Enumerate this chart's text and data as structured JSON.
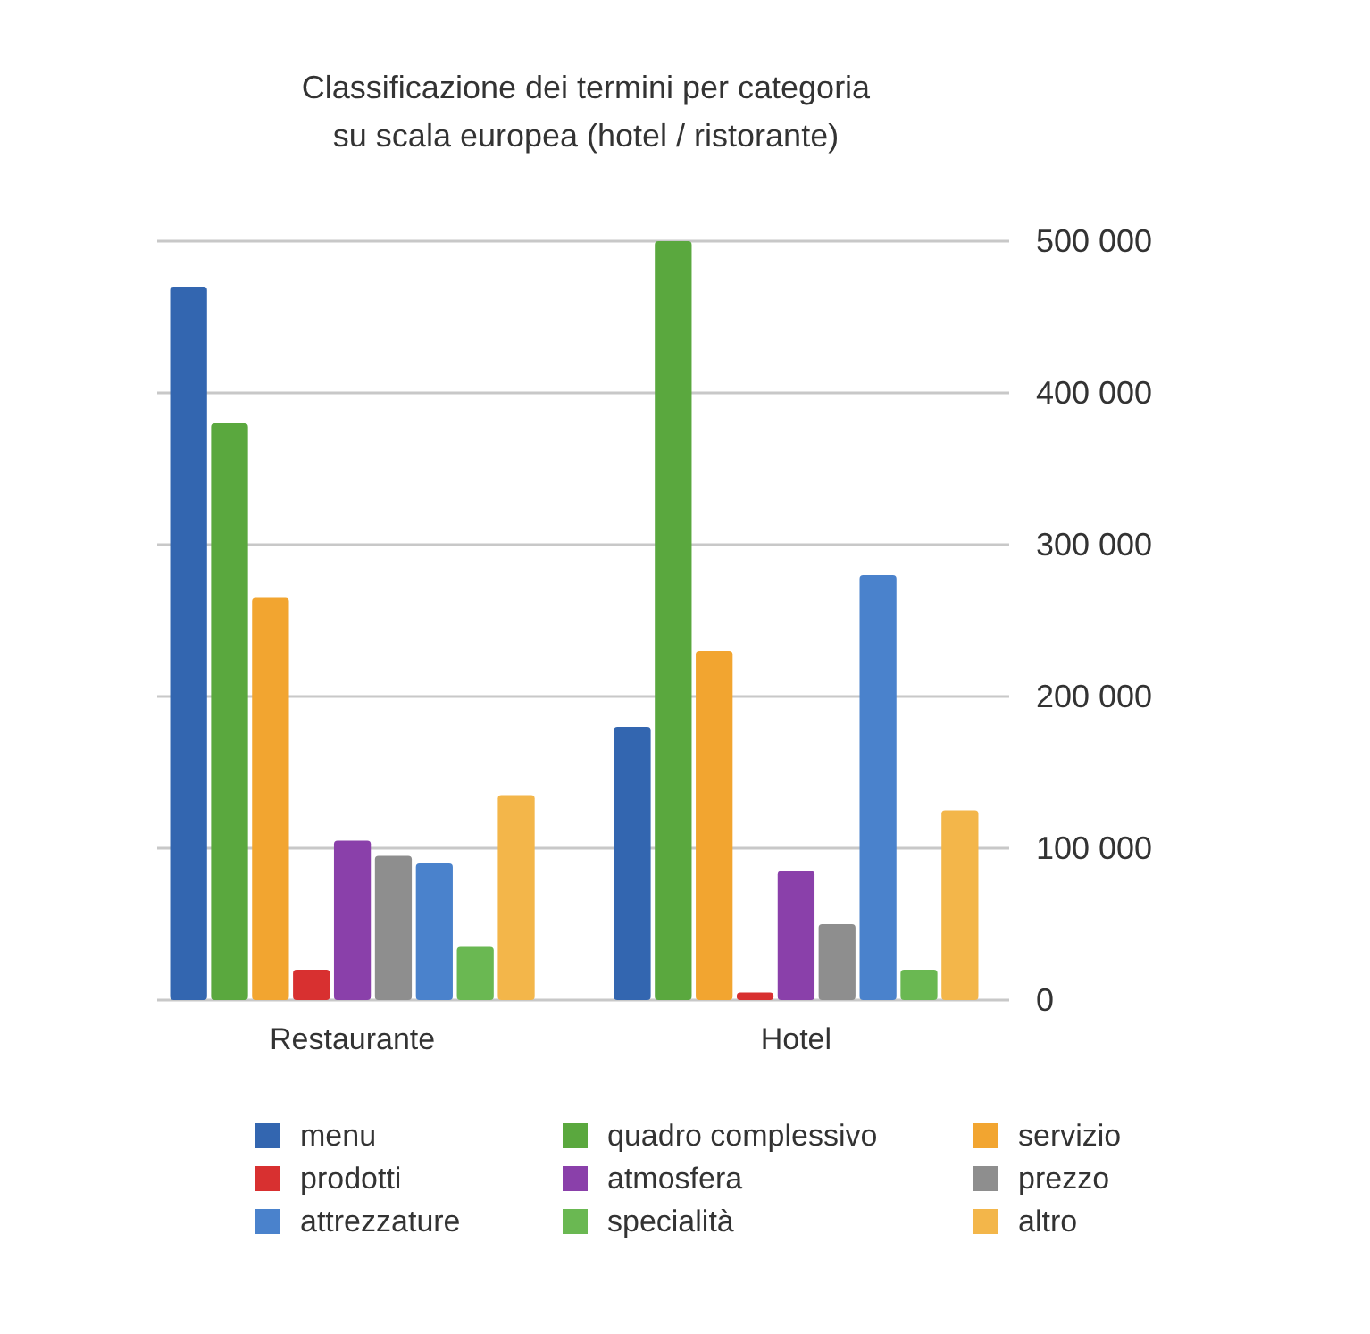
{
  "chart_data": {
    "type": "bar",
    "title": "Classificazione dei termini per categoria\nsu scala europea (hotel / ristorante)",
    "categories": [
      "Restaurante",
      "Hotel"
    ],
    "series": [
      {
        "name": "menu",
        "color": "#3366b0",
        "values": [
          470000,
          180000
        ]
      },
      {
        "name": "quadro complessivo",
        "color": "#5aa83e",
        "values": [
          380000,
          500000
        ]
      },
      {
        "name": "servizio",
        "color": "#f2a530",
        "values": [
          265000,
          230000
        ]
      },
      {
        "name": "prodotti",
        "color": "#d83030",
        "values": [
          20000,
          5000
        ]
      },
      {
        "name": "atmosfera",
        "color": "#8a40aa",
        "values": [
          105000,
          85000
        ]
      },
      {
        "name": "prezzo",
        "color": "#8e8e8e",
        "values": [
          95000,
          50000
        ]
      },
      {
        "name": "attrezzature",
        "color": "#4a82cc",
        "values": [
          90000,
          280000
        ]
      },
      {
        "name": "specialità",
        "color": "#6ab852",
        "values": [
          35000,
          20000
        ]
      },
      {
        "name": "altro",
        "color": "#f3b64a",
        "values": [
          135000,
          125000
        ]
      }
    ],
    "ylim": [
      0,
      500000
    ],
    "yticks": [
      {
        "value": 0,
        "label": "0"
      },
      {
        "value": 100000,
        "label": "100 000"
      },
      {
        "value": 200000,
        "label": "200 000"
      },
      {
        "value": 300000,
        "label": "300 000"
      },
      {
        "value": 400000,
        "label": "400 000"
      },
      {
        "value": 500000,
        "label": "500 000"
      }
    ],
    "grid": "y",
    "legend": "bottom"
  }
}
